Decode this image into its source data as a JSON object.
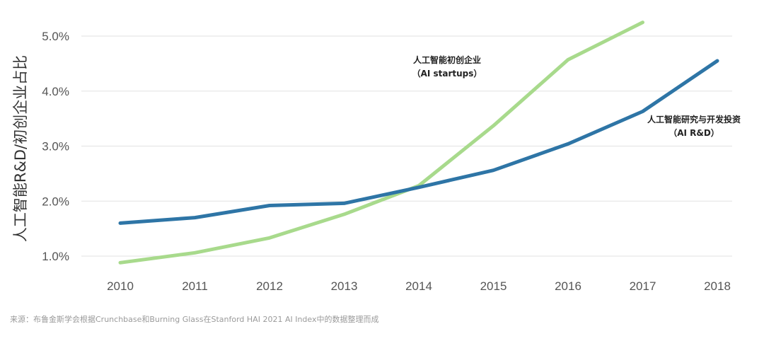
{
  "chart_data": {
    "type": "line",
    "title": "",
    "xlabel": "",
    "ylabel": "人工智能R&D/初创企业占比",
    "categories": [
      "2010",
      "2011",
      "2012",
      "2013",
      "2014",
      "2015",
      "2016",
      "2017",
      "2018"
    ],
    "yticks": [
      "1.0%",
      "2.0%",
      "3.0%",
      "4.0%",
      "5.0%"
    ],
    "ylim": [
      0.8,
      5.4
    ],
    "grid": true,
    "series": [
      {
        "name": "AI R&D",
        "label_line1": "人工智能研究与开发投资",
        "label_line2": "（AI R&D）",
        "color": "#2e75a6",
        "values": [
          1.6,
          1.7,
          1.92,
          1.96,
          2.25,
          2.56,
          3.04,
          3.63,
          4.55
        ]
      },
      {
        "name": "AI startups",
        "label_line1": "人工智能初创企业",
        "label_line2": "（AI startups）",
        "color": "#a8da8c",
        "values": [
          0.88,
          1.06,
          1.33,
          1.76,
          2.28,
          3.37,
          4.57,
          5.25,
          null
        ]
      }
    ],
    "source": "来源：布鲁金斯学会根据Crunchbase和Burning Glass在Stanford HAI 2021 AI Index中的数据整理而成"
  }
}
